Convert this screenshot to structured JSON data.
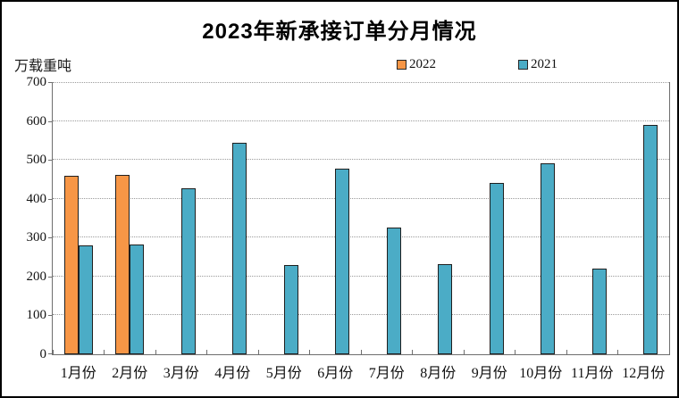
{
  "frame": {
    "background": "#ffffff",
    "border_color": "#000000"
  },
  "chart_data": {
    "type": "bar",
    "title": "2023年新承接订单分月情况",
    "unit_label": "万载重吨",
    "categories": [
      "1月份",
      "2月份",
      "3月份",
      "4月份",
      "5月份",
      "6月份",
      "7月份",
      "8月份",
      "9月份",
      "10月份",
      "11月份",
      "12月份"
    ],
    "series": [
      {
        "name": "2022",
        "color": "#F79646",
        "values": [
          460,
          461,
          null,
          null,
          null,
          null,
          null,
          null,
          null,
          null,
          null,
          null
        ]
      },
      {
        "name": "2021",
        "color": "#4BACC6",
        "values": [
          280,
          282,
          427,
          545,
          230,
          477,
          327,
          232,
          441,
          491,
          221,
          590
        ]
      }
    ],
    "ylim": [
      0,
      700
    ],
    "yticks": [
      0,
      100,
      200,
      300,
      400,
      500,
      600,
      700
    ],
    "grid": "horizontal-dotted",
    "legend_position": "top",
    "bar_outline_color": "#1f1f1f"
  }
}
